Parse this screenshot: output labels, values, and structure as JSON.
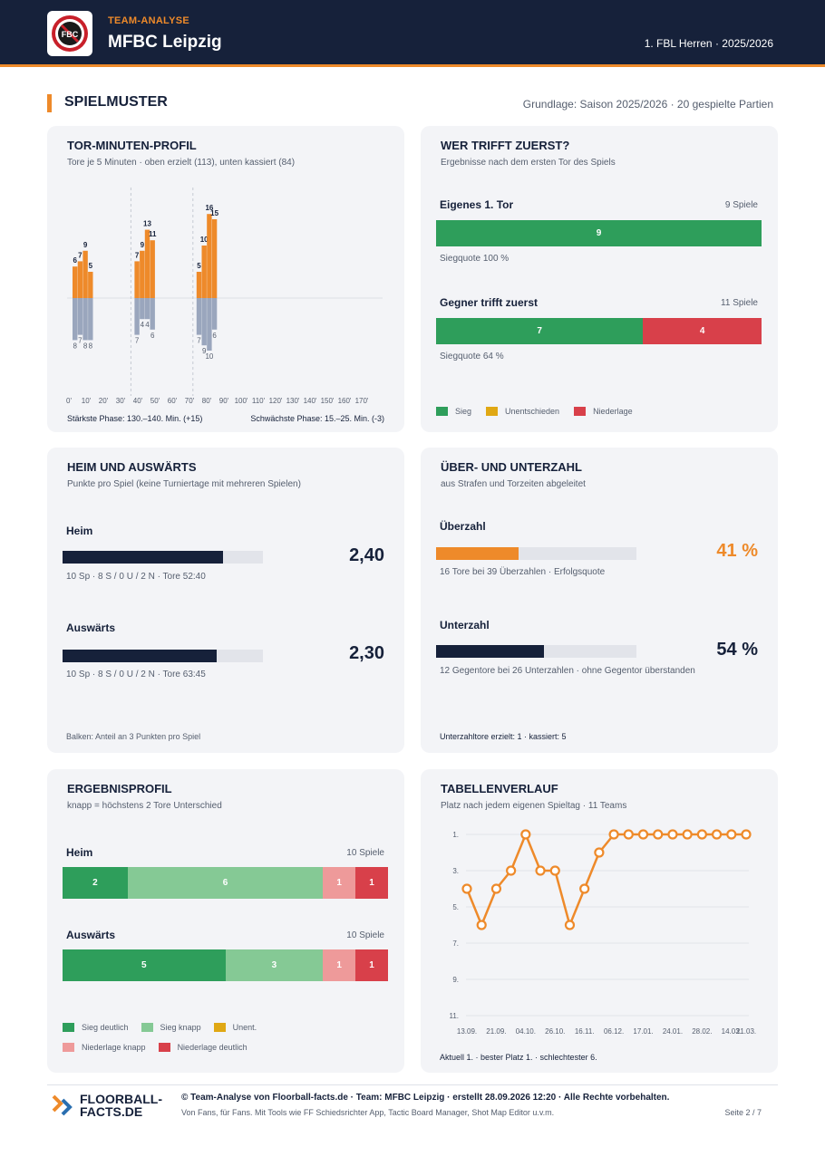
{
  "header": {
    "kicker": "TEAM-ANALYSE",
    "team": "MFBC Leipzig",
    "league": "1. FBL Herren · 2025/2026",
    "logo_text": "FBC"
  },
  "section": {
    "title": "SPIELMUSTER",
    "basis": "Grundlage: Saison 2025/2026 · 20 gespielte Partien"
  },
  "minutes": {
    "title": "TOR-MINUTEN-PROFIL",
    "subtitle": "Tore je 5 Minuten · oben erzielt (113), unten kassiert (84)",
    "strongest": "Stärkste Phase: 130.–140. Min. (+15)",
    "weakest": "Schwächste Phase: 15.–25. Min. (-3)"
  },
  "first_goal": {
    "title": "WER TRIFFT ZUERST?",
    "subtitle": "Ergebnisse nach dem ersten Tor des Spiels",
    "own": {
      "label": "Eigenes 1. Tor",
      "games": "9 Spiele",
      "win": 9,
      "draw": 0,
      "loss": 0,
      "quote": "Siegquote 100 %"
    },
    "opp": {
      "label": "Gegner trifft zuerst",
      "games": "11 Spiele",
      "win": 7,
      "draw": 0,
      "loss": 4,
      "quote": "Siegquote 64 %"
    },
    "legend": {
      "win": "Sieg",
      "draw": "Unentschieden",
      "loss": "Niederlage"
    }
  },
  "home_away": {
    "title": "HEIM UND AUSWÄRTS",
    "subtitle": "Punkte pro Spiel (keine Turniertage mit mehreren Spielen)",
    "home": {
      "label": "Heim",
      "value": "2,40",
      "ppg": 2.4,
      "detail": "10 Sp · 8 S / 0 U / 2 N · Tore 52:40"
    },
    "away": {
      "label": "Auswärts",
      "value": "2,30",
      "ppg": 2.3,
      "detail": "10 Sp · 8 S / 0 U / 2 N · Tore 63:45"
    },
    "note": "Balken: Anteil an 3 Punkten pro Spiel"
  },
  "powerplay": {
    "title": "ÜBER- UND UNTERZAHL",
    "subtitle": "aus Strafen und Torzeiten abgeleitet",
    "pp": {
      "label": "Überzahl",
      "value": "41 %",
      "pct": 41,
      "detail": "16 Tore bei 39 Überzahlen · Erfolgsquote"
    },
    "pk": {
      "label": "Unterzahl",
      "value": "54 %",
      "pct": 54,
      "detail": "12 Gegentore bei 26 Unterzahlen · ohne Gegentor überstanden"
    },
    "note": "Unterzahltore erzielt: 1 · kassiert: 5"
  },
  "results": {
    "title": "ERGEBNISPROFIL",
    "subtitle": "knapp = höchstens 2 Tore Unterschied",
    "home": {
      "label": "Heim",
      "games": "10 Spiele",
      "values": [
        2,
        6,
        0,
        1,
        1
      ]
    },
    "away": {
      "label": "Auswärts",
      "games": "10 Spiele",
      "values": [
        5,
        3,
        0,
        1,
        1
      ]
    },
    "legend": [
      "Sieg deutlich",
      "Sieg knapp",
      "Unent.",
      "Niederlage knapp",
      "Niederlage deutlich"
    ]
  },
  "table": {
    "title": "TABELLENVERLAUF",
    "subtitle": "Platz nach jedem eigenen Spieltag · 11 Teams",
    "note": "Aktuell 1. · bester Platz 1. · schlechtester 6."
  },
  "colors": {
    "navy": "#16213a",
    "orange": "#ee8a2a",
    "conceded": "#9aa6bd",
    "win": "#2e9e5b",
    "win_close": "#85c995",
    "draw": "#e0a814",
    "loss_close": "#ee9a9a",
    "loss": "#d8404a"
  },
  "chart_data": [
    {
      "type": "bar",
      "categories": [
        "0–5",
        "5–10",
        "10–15",
        "15–20",
        "20–25",
        "25–30",
        "30–35",
        "35–40",
        "40–45",
        "45–50",
        "50–55",
        "55–60",
        "60–65",
        "65–70",
        "70–75",
        "75–80",
        "80–85",
        "85–90",
        "90–95",
        "95–100",
        "100–105",
        "105–110",
        "110–115",
        "115–120",
        "120–125",
        "125–130",
        "130–135",
        "135–140",
        "140–145",
        "145–150",
        "150–155",
        "155–160",
        "160–165",
        "165–170",
        "170–175",
        "175–180"
      ],
      "x_tick_labels": [
        "0'",
        "10'",
        "20'",
        "30'",
        "40'",
        "50'",
        "60'",
        "70'",
        "80'",
        "90'",
        "100'",
        "110'",
        "120'",
        "130'",
        "140'",
        "150'",
        "160'",
        "170'"
      ],
      "series": [
        {
          "name": "erzielt",
          "values": [
            6,
            7,
            9,
            5,
            0,
            0,
            0,
            0,
            0,
            0,
            0,
            0,
            7,
            9,
            13,
            11,
            0,
            0,
            0,
            0,
            0,
            0,
            0,
            0,
            5,
            10,
            16,
            15,
            0,
            0,
            0,
            0,
            0,
            0,
            0,
            0
          ]
        },
        {
          "name": "kassiert",
          "values": [
            8,
            7,
            8,
            8,
            0,
            0,
            0,
            0,
            0,
            0,
            0,
            0,
            7,
            4,
            4,
            6,
            0,
            0,
            0,
            0,
            0,
            0,
            0,
            0,
            7,
            9,
            10,
            6,
            0,
            0,
            0,
            0,
            0,
            0,
            0,
            0
          ]
        }
      ]
    },
    {
      "type": "line",
      "x": [
        "13.09.",
        "",
        "21.09.",
        "",
        "04.10.",
        "",
        "26.10.",
        "",
        "16.11.",
        "",
        "06.12.",
        "",
        "17.01.",
        "",
        "24.01.",
        "",
        "28.02.",
        "",
        "14.03.",
        "21.03."
      ],
      "tick_labels_x": [
        "13.09.",
        "21.09.",
        "04.10.",
        "26.10.",
        "16.11.",
        "06.12.",
        "17.01.",
        "24.01.",
        "28.02.",
        "14.03.",
        "21.03."
      ],
      "series": [
        {
          "values": [
            4,
            6,
            4,
            3,
            1,
            3,
            3,
            6,
            4,
            2,
            1,
            1,
            1,
            1,
            1,
            1,
            1,
            1,
            1,
            1
          ]
        }
      ],
      "y_ticks": [
        "1.",
        "3.",
        "5.",
        "7.",
        "9.",
        "11."
      ],
      "ylim": [
        11,
        1
      ],
      "grid": true
    }
  ]
}
